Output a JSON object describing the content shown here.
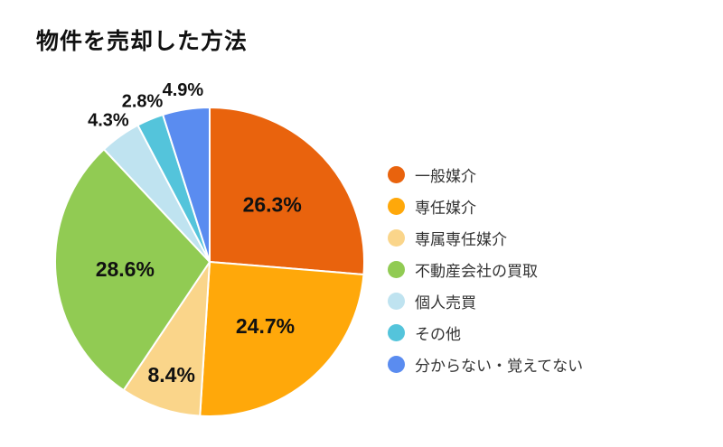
{
  "chart_data": {
    "type": "pie",
    "title": "物件を売却した方法",
    "start_angle_deg": 0,
    "direction": "clockwise",
    "legend_position": "right",
    "value_suffix": "%",
    "label_color": "#111111",
    "legend_text_color": "#333333",
    "background_color": "#ffffff",
    "slices": [
      {
        "label": "一般媒介",
        "value": 26.3,
        "color": "#E9630D",
        "display_value": "26.3%"
      },
      {
        "label": "専任媒介",
        "value": 24.7,
        "color": "#FFA80A",
        "display_value": "24.7%"
      },
      {
        "label": "専属専任媒介",
        "value": 8.4,
        "color": "#FAD58A",
        "display_value": "8.4%"
      },
      {
        "label": "不動産会社の買取",
        "value": 28.6,
        "color": "#91CB53",
        "display_value": "28.6%"
      },
      {
        "label": "個人売買",
        "value": 4.3,
        "color": "#BFE3F0",
        "display_value": "4.3%"
      },
      {
        "label": "その他",
        "value": 2.8,
        "color": "#54C4DB",
        "display_value": "2.8%"
      },
      {
        "label": "分からない・覚えてない",
        "value": 4.9,
        "color": "#5A8CF0",
        "display_value": "4.9%"
      }
    ]
  }
}
